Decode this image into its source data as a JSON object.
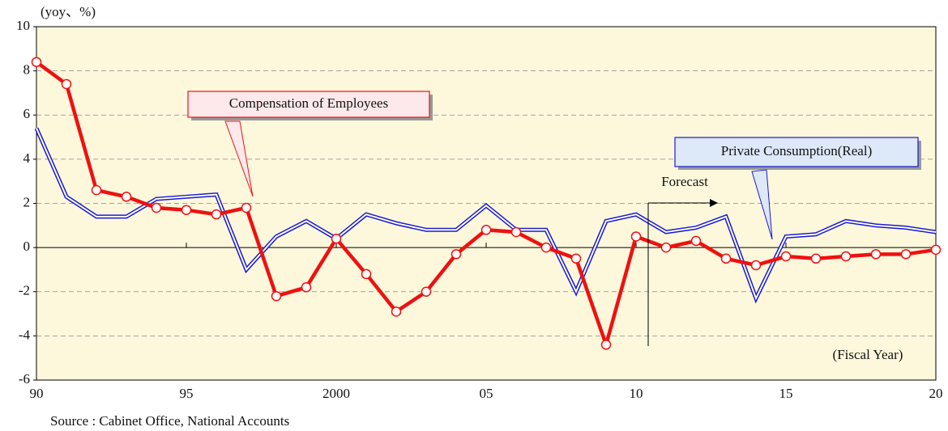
{
  "chart_data": {
    "type": "line",
    "y_unit_label": "(yoy、%)",
    "x_axis_label": "(Fiscal Year)",
    "source": "Source : Cabinet Office, National Accounts",
    "forecast_label": "Forecast",
    "x": [
      1990,
      1991,
      1992,
      1993,
      1994,
      1995,
      1996,
      1997,
      1998,
      1999,
      2000,
      2001,
      2002,
      2003,
      2004,
      2005,
      2006,
      2007,
      2008,
      2009,
      2010,
      2011,
      2012,
      2013,
      2014,
      2015,
      2016,
      2017,
      2018,
      2019,
      2020
    ],
    "series": [
      {
        "name": "Private Consumption(Real)",
        "color": "#1a1ad0",
        "values": [
          5.4,
          2.3,
          1.4,
          1.4,
          2.2,
          2.3,
          2.4,
          -1.0,
          0.5,
          1.2,
          0.4,
          1.5,
          1.1,
          0.8,
          0.8,
          1.9,
          0.8,
          0.8,
          -2.0,
          1.2,
          1.5,
          0.7,
          0.9,
          1.4,
          -2.3,
          0.5,
          0.6,
          1.2,
          1.0,
          0.9,
          0.7
        ]
      },
      {
        "name": "Compensation of Employees",
        "color": "#ee1111",
        "values": [
          8.4,
          7.4,
          2.6,
          2.3,
          1.8,
          1.7,
          1.5,
          1.8,
          -2.2,
          -1.8,
          0.4,
          -1.2,
          -2.9,
          -2.0,
          -0.3,
          0.8,
          0.7,
          0.0,
          -0.5,
          -4.4,
          0.5,
          0.0,
          0.3,
          -0.5,
          -0.8,
          -0.4,
          -0.5,
          -0.4,
          -0.3,
          -0.3,
          -0.1
        ]
      }
    ],
    "xlim": [
      1990,
      2020
    ],
    "xticks": [
      {
        "value": 1990,
        "label": "90"
      },
      {
        "value": 1995,
        "label": "95"
      },
      2000,
      {
        "value": 2005,
        "label": "05"
      },
      {
        "value": 2010,
        "label": "10"
      },
      {
        "value": 2015,
        "label": "15"
      },
      {
        "value": 2020,
        "label": "20"
      }
    ],
    "ylim": [
      -6,
      10
    ],
    "yticks": [
      -6,
      -4,
      -2,
      0,
      2,
      4,
      6,
      8,
      10
    ],
    "grid": true
  }
}
